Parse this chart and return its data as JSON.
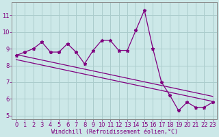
{
  "xlabel": "Windchill (Refroidissement éolien,°C)",
  "bg_color": "#cce8e8",
  "grid_color": "#aacccc",
  "line_color": "#800080",
  "spine_color": "#888888",
  "hours": [
    0,
    1,
    2,
    3,
    4,
    5,
    6,
    7,
    8,
    9,
    10,
    11,
    12,
    13,
    14,
    15,
    16,
    17,
    18,
    19,
    20,
    21,
    22,
    23
  ],
  "values": [
    8.6,
    8.8,
    9.0,
    9.4,
    8.8,
    8.8,
    9.3,
    8.8,
    8.1,
    8.9,
    9.5,
    9.5,
    8.9,
    8.9,
    10.1,
    11.3,
    9.0,
    7.0,
    6.2,
    5.3,
    5.8,
    5.5,
    5.5,
    5.8
  ],
  "trend1": [
    8.65,
    6.15
  ],
  "trend2": [
    8.35,
    5.85
  ],
  "ylim": [
    4.8,
    11.8
  ],
  "yticks": [
    5,
    6,
    7,
    8,
    9,
    10,
    11
  ],
  "xlim": [
    -0.5,
    23.5
  ],
  "tick_fontsize": 6,
  "xlabel_fontsize": 6
}
